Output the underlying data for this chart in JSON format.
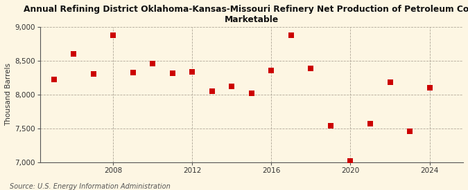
{
  "title": "Annual Refining District Oklahoma-Kansas-Missouri Refinery Net Production of Petroleum Coke\nMarketable",
  "ylabel": "Thousand Barrels",
  "source": "Source: U.S. Energy Information Administration",
  "background_color": "#fdf6e3",
  "years": [
    2005,
    2006,
    2007,
    2008,
    2009,
    2010,
    2011,
    2012,
    2013,
    2014,
    2015,
    2016,
    2017,
    2018,
    2019,
    2020,
    2021,
    2022,
    2023,
    2024
  ],
  "values": [
    8220,
    8600,
    8300,
    8880,
    8320,
    8460,
    8310,
    8330,
    8050,
    8120,
    8020,
    8350,
    8880,
    8390,
    7540,
    7020,
    7570,
    8180,
    7460,
    8100
  ],
  "marker_color": "#cc0000",
  "marker_size": 40,
  "ylim": [
    7000,
    9000
  ],
  "yticks": [
    7000,
    7500,
    8000,
    8500,
    9000
  ],
  "xticks": [
    2008,
    2012,
    2016,
    2020,
    2024
  ],
  "xlim_left": 2004.3,
  "xlim_right": 2025.7,
  "grid_color": "#b0a898",
  "grid_style": "--",
  "title_fontsize": 8.8,
  "label_fontsize": 7.5,
  "tick_fontsize": 7.5,
  "source_fontsize": 7.0
}
